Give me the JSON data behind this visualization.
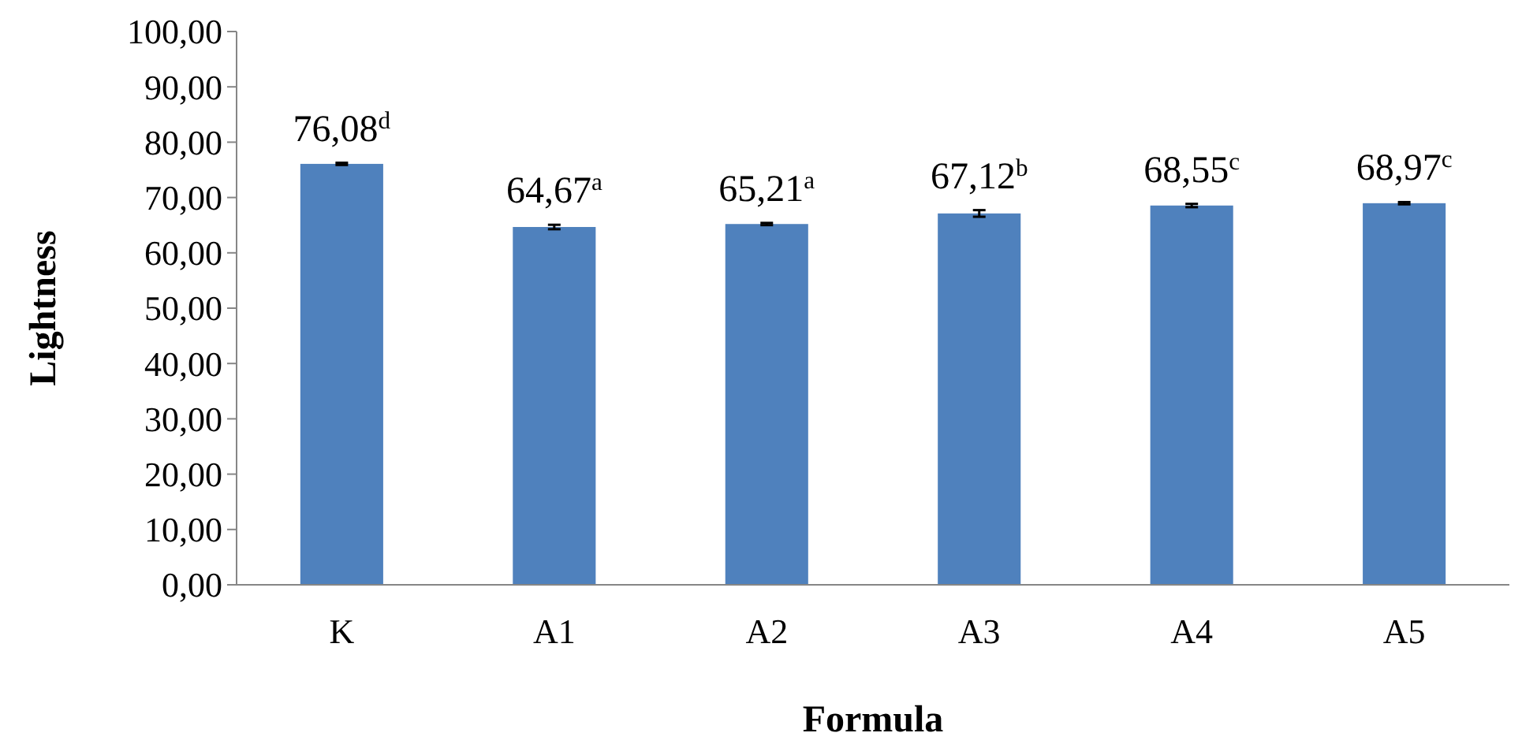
{
  "chart_data": {
    "type": "bar",
    "xlabel": "Formula",
    "ylabel": "Lightness",
    "categories": [
      "K",
      "A1",
      "A2",
      "A3",
      "A4",
      "A5"
    ],
    "values": [
      76.08,
      64.67,
      65.21,
      67.12,
      68.55,
      68.97
    ],
    "errors": [
      0.2,
      0.4,
      0.2,
      0.6,
      0.3,
      0.2
    ],
    "value_labels": [
      "76,08$^{d}$",
      "64,67$^{a}$",
      "65,21$^{a}$",
      "67,12$^{b}$",
      "68,55$^{c}$",
      "68,97$^{c}$"
    ],
    "color": "#4f81bd",
    "ylim": [
      0,
      100
    ],
    "yticks": [
      {
        "value": 0,
        "label": "0,00"
      },
      {
        "value": 10,
        "label": "10,00"
      },
      {
        "value": 20,
        "label": "20,00"
      },
      {
        "value": 30,
        "label": "30,00"
      },
      {
        "value": 40,
        "label": "40,00"
      },
      {
        "value": 50,
        "label": "50,00"
      },
      {
        "value": 60,
        "label": "60,00"
      },
      {
        "value": 70,
        "label": "70,00"
      },
      {
        "value": 80,
        "label": "80,00"
      },
      {
        "value": 90,
        "label": "90,00"
      },
      {
        "value": 100,
        "label": "100,00"
      }
    ],
    "grid": false
  }
}
